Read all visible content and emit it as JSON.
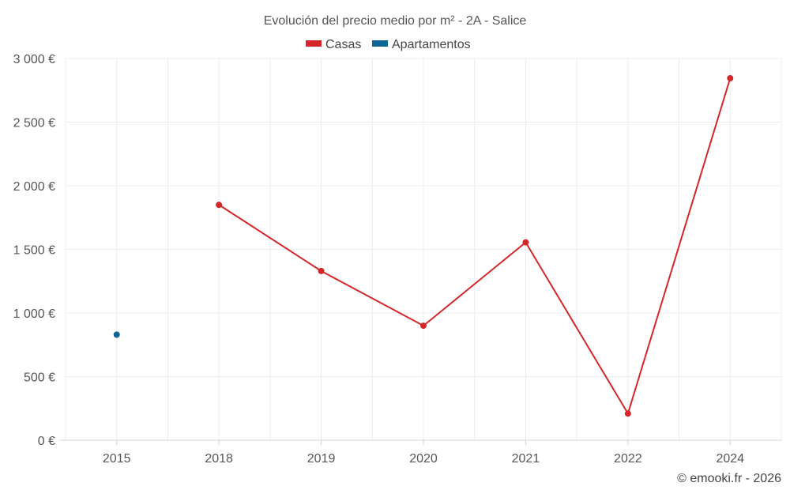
{
  "chart_data": {
    "type": "line",
    "title": "Evolución del precio medio por m² - 2A - Salice",
    "categories": [
      "2015",
      "2018",
      "2019",
      "2020",
      "2021",
      "2022",
      "2024"
    ],
    "ylim": [
      0,
      3000
    ],
    "yticks": [
      0,
      500,
      1000,
      1500,
      2000,
      2500,
      3000
    ],
    "ytick_labels": [
      "0 €",
      "500 €",
      "1 000 €",
      "1 500 €",
      "2 000 €",
      "2 500 €",
      "3 000 €"
    ],
    "grid": true,
    "legend_position": "top-center",
    "series": [
      {
        "name": "Casas",
        "color": "#d3272b",
        "values": [
          null,
          1850,
          1330,
          900,
          1555,
          210,
          2845
        ]
      },
      {
        "name": "Apartamentos",
        "color": "#0d6496",
        "values": [
          830,
          null,
          null,
          null,
          null,
          null,
          null
        ]
      }
    ]
  },
  "credit": "© emooki.fr - 2026"
}
